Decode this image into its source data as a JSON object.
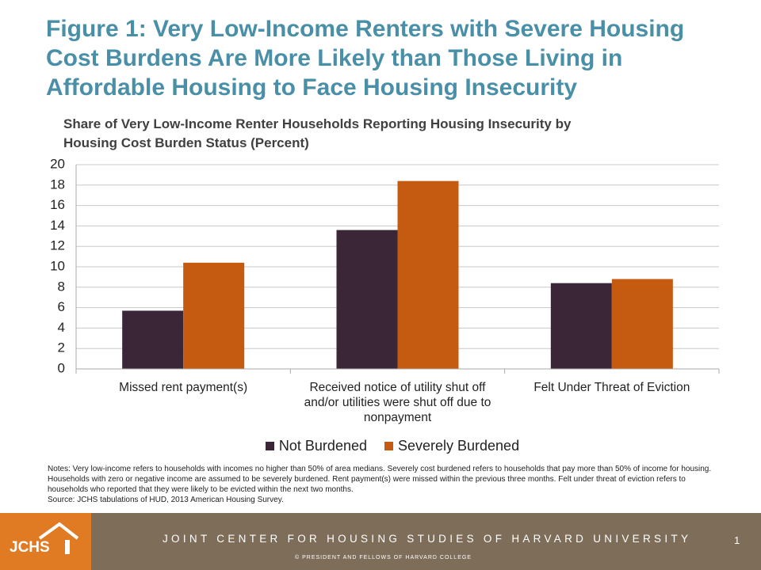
{
  "title": "Figure 1: Very Low-Income Renters with Severe Housing Cost Burdens Are More Likely than Those Living in Affordable Housing to Face Housing Insecurity",
  "chart_data": {
    "type": "bar",
    "title": "Share of Very Low-Income Renter Households Reporting Housing Insecurity by Housing Cost Burden Status (Percent)",
    "categories": [
      "Missed rent payment(s)",
      "Received notice of utility shut off and/or utilities were shut off due to nonpayment",
      "Felt Under Threat of Eviction"
    ],
    "series": [
      {
        "name": "Not Burdened",
        "color": "#3b2637",
        "values": [
          5.7,
          13.6,
          8.4
        ]
      },
      {
        "name": "Severely Burdened",
        "color": "#c55a11",
        "values": [
          10.4,
          18.4,
          8.8
        ]
      }
    ],
    "ylim": [
      0,
      20
    ],
    "yticks": [
      0,
      2,
      4,
      6,
      8,
      10,
      12,
      14,
      16,
      18,
      20
    ],
    "grid": true,
    "legend": "bottom"
  },
  "notes": "Notes: Very low-income refers to households with incomes no higher than 50% of area medians. Severely cost burdened refers to households that pay more than 50% of income for housing. Households with zero or negative income are assumed to be severely burdened. Rent payment(s) were missed within the previous three months. Felt under threat of eviction refers to households who reported that they were likely to be evicted within the next two months.",
  "source": "Source: JCHS tabulations of HUD, 2013 American Housing Survey.",
  "footer": {
    "logo": "JCHS",
    "org": "JOINT CENTER FOR HOUSING STUDIES OF HARVARD UNIVERSITY",
    "copyright": "© PRESIDENT AND FELLOWS OF HARVARD COLLEGE",
    "page": 1
  }
}
